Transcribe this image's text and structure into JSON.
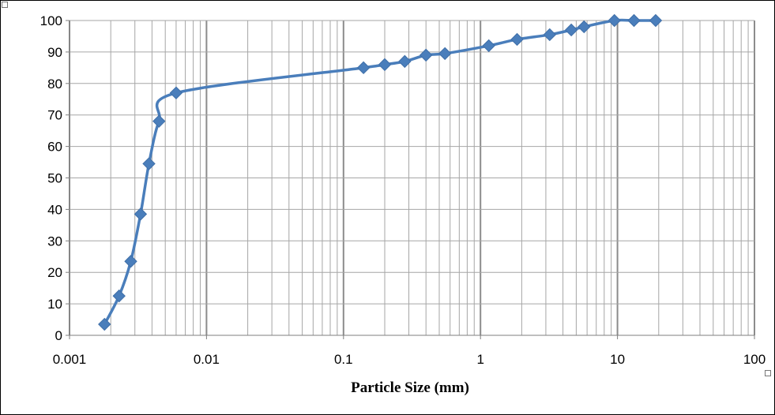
{
  "chart_data": {
    "type": "scatter",
    "x_scale": "log",
    "xlim": [
      0.001,
      100
    ],
    "ylim": [
      0,
      100
    ],
    "x_ticks": [
      "0.001",
      "0.01",
      "0.1",
      "1",
      "10",
      "100"
    ],
    "y_ticks": [
      "0",
      "10",
      "20",
      "30",
      "40",
      "50",
      "60",
      "70",
      "80",
      "90",
      "100"
    ],
    "xlabel": "Particle Size (mm)",
    "ylabel": "",
    "title": "",
    "grid": true,
    "legend": "none",
    "series": [
      {
        "marker": "diamond",
        "line": "smooth",
        "color": "#4a7ebb",
        "x": [
          0.0018,
          0.0023,
          0.0028,
          0.0033,
          0.0038,
          0.0045,
          0.006,
          0.14,
          0.2,
          0.28,
          0.4,
          0.55,
          1.15,
          1.85,
          3.2,
          4.6,
          5.7,
          9.5,
          13.2,
          19
        ],
        "y": [
          3.5,
          12.5,
          23.5,
          38.5,
          54.5,
          68,
          77,
          85,
          86,
          87,
          89,
          89.5,
          92,
          94,
          95.5,
          97,
          98,
          100,
          100,
          100
        ]
      }
    ]
  },
  "colors": {
    "series": "#4a7ebb",
    "grid": "#a6a6a6",
    "axis": "#7f7f7f",
    "frame": "#000000"
  }
}
